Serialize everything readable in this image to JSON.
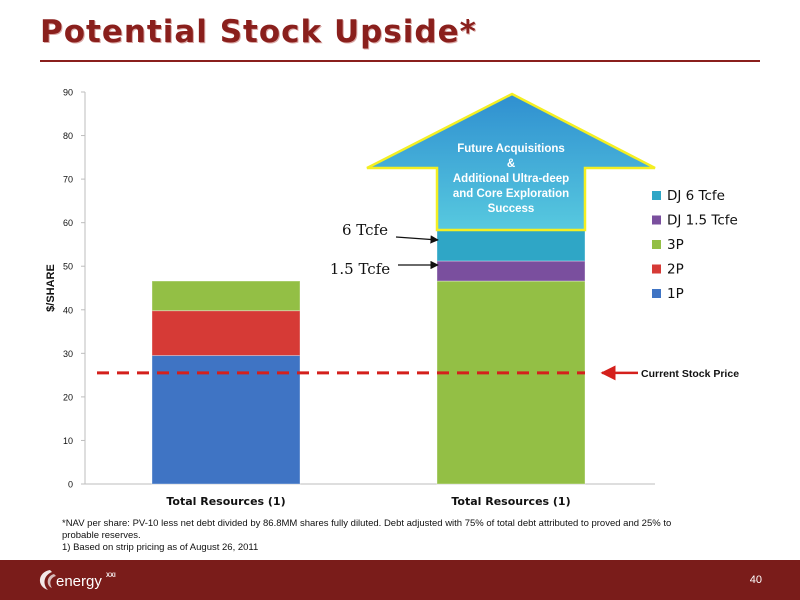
{
  "slide": {
    "title": "Potential Stock Upside*",
    "page_number": "40",
    "logo_text": "energy",
    "logo_superscript": "XXI",
    "footnotes": [
      "*NAV per share: PV-10 less net debt divided by 86.8MM shares fully diluted. Debt adjusted with 75% of total debt attributed to proved and 25% to probable reserves.",
      "1) Based on strip pricing as of August 26, 2011"
    ]
  },
  "chart_data": {
    "type": "bar",
    "stacked": true,
    "categories": [
      "Total Resources (1)",
      "Total Resources (1)"
    ],
    "ylabel": "$/SHARE",
    "ylim": [
      0,
      90
    ],
    "yticks": [
      0,
      10,
      20,
      30,
      40,
      50,
      60,
      70,
      80,
      90
    ],
    "legend_position": "right",
    "series": [
      {
        "name": "1P",
        "color": "#3f74c4",
        "values": [
          29.5,
          0
        ]
      },
      {
        "name": "2P",
        "color": "#d63a36",
        "values": [
          10.3,
          0
        ]
      },
      {
        "name": "3P",
        "color": "#93bf45",
        "values": [
          6.8,
          46.6
        ]
      },
      {
        "name": "DJ 1.5 Tcfe",
        "color": "#7a4f9e",
        "values": [
          0,
          4.6
        ]
      },
      {
        "name": "DJ 6 Tcfe",
        "color": "#2fa6c6",
        "values": [
          0,
          8.5
        ]
      }
    ],
    "annotations": {
      "current_price_label": "Current Stock Price",
      "current_price_value": 25.5,
      "arrow_label_6": "6 Tcfe",
      "arrow_label_15": "1.5 Tcfe",
      "upside_arrow_lines": [
        "Future Acquisitions",
        "&",
        "Additional Ultra-deep",
        "and Core Exploration",
        "Success"
      ]
    }
  }
}
